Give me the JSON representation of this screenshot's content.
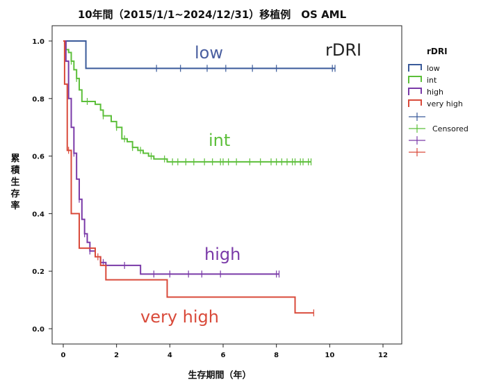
{
  "chart_data": {
    "type": "line",
    "title": "10年間（2015/1/1~2024/12/31）移植例　OS  AML",
    "xlabel": "生存期間（年）",
    "ylabel": "累積生存率",
    "xlim": [
      0,
      12
    ],
    "ylim": [
      0,
      1.0
    ],
    "xticks": [
      "0",
      "2",
      "4",
      "6",
      "8",
      "10",
      "12"
    ],
    "yticks": [
      "0.0",
      "0.2",
      "0.4",
      "0.6",
      "0.8",
      "1.0"
    ],
    "grid": false,
    "legend": {
      "title": "rDRI",
      "placement": "right",
      "entries": [
        "low",
        "int",
        "high",
        "very high"
      ],
      "censored_label": "Censored"
    },
    "annotations": {
      "corner": "rDRI",
      "low": "low",
      "int": "int",
      "high": "high",
      "very_high": "very high"
    },
    "series": [
      {
        "name": "low",
        "color": "#3a5a9a",
        "steps": [
          [
            0,
            1.0
          ],
          [
            0.85,
            0.905
          ],
          [
            10.2,
            0.905
          ]
        ],
        "censored": [
          3.5,
          4.4,
          5.4,
          6.1,
          7.1,
          8.0,
          10.1,
          10.2
        ]
      },
      {
        "name": "int",
        "color": "#5cbf3a",
        "steps": [
          [
            0,
            1.0
          ],
          [
            0.1,
            0.97
          ],
          [
            0.2,
            0.96
          ],
          [
            0.3,
            0.93
          ],
          [
            0.4,
            0.9
          ],
          [
            0.5,
            0.87
          ],
          [
            0.6,
            0.83
          ],
          [
            0.7,
            0.79
          ],
          [
            1.2,
            0.78
          ],
          [
            1.4,
            0.76
          ],
          [
            1.5,
            0.74
          ],
          [
            1.8,
            0.72
          ],
          [
            2.0,
            0.7
          ],
          [
            2.2,
            0.66
          ],
          [
            2.4,
            0.65
          ],
          [
            2.6,
            0.63
          ],
          [
            2.8,
            0.62
          ],
          [
            3.0,
            0.61
          ],
          [
            3.2,
            0.6
          ],
          [
            3.4,
            0.59
          ],
          [
            3.9,
            0.58
          ],
          [
            9.3,
            0.58
          ]
        ],
        "censored": [
          0.3,
          0.5,
          0.9,
          1.5,
          2.0,
          2.3,
          2.6,
          2.9,
          3.3,
          3.8,
          4.1,
          4.3,
          4.6,
          4.9,
          5.3,
          5.6,
          5.9,
          6.0,
          6.2,
          6.5,
          7.0,
          7.4,
          7.8,
          8.0,
          8.2,
          8.4,
          8.6,
          8.7,
          8.9,
          9.0,
          9.2,
          9.3
        ]
      },
      {
        "name": "high",
        "color": "#7a3aa8",
        "steps": [
          [
            0,
            1.0
          ],
          [
            0.1,
            0.93
          ],
          [
            0.2,
            0.8
          ],
          [
            0.3,
            0.7
          ],
          [
            0.4,
            0.61
          ],
          [
            0.5,
            0.52
          ],
          [
            0.6,
            0.45
          ],
          [
            0.7,
            0.38
          ],
          [
            0.8,
            0.33
          ],
          [
            0.9,
            0.3
          ],
          [
            1.0,
            0.27
          ],
          [
            1.2,
            0.25
          ],
          [
            1.4,
            0.23
          ],
          [
            1.6,
            0.22
          ],
          [
            2.9,
            0.19
          ],
          [
            8.1,
            0.19
          ]
        ],
        "censored": [
          0.4,
          0.6,
          0.8,
          1.0,
          1.5,
          2.3,
          3.4,
          4.0,
          4.7,
          5.2,
          5.9,
          8.0,
          8.1
        ]
      },
      {
        "name": "very high",
        "color": "#d94a3a",
        "steps": [
          [
            0,
            1.0
          ],
          [
            0.05,
            0.85
          ],
          [
            0.15,
            0.62
          ],
          [
            0.3,
            0.4
          ],
          [
            0.6,
            0.28
          ],
          [
            1.2,
            0.25
          ],
          [
            1.4,
            0.22
          ],
          [
            1.6,
            0.17
          ],
          [
            3.9,
            0.11
          ],
          [
            8.7,
            0.055
          ],
          [
            9.4,
            0.055
          ]
        ],
        "censored": [
          0.2,
          1.3,
          9.4
        ]
      }
    ]
  }
}
